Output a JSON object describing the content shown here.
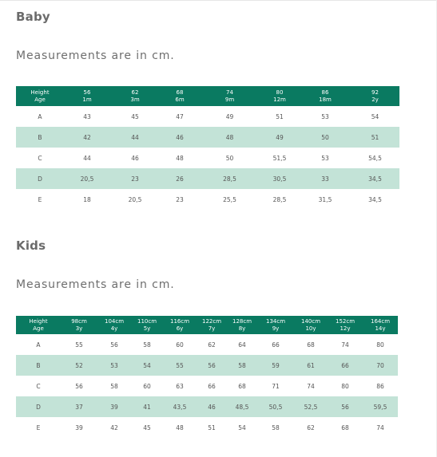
{
  "baby": {
    "title": "Baby",
    "note": "Measurements are in cm.",
    "header": [
      [
        "Height",
        "Age"
      ],
      [
        "56",
        "1m"
      ],
      [
        "62",
        "3m"
      ],
      [
        "68",
        "6m"
      ],
      [
        "74",
        "9m"
      ],
      [
        "80",
        "12m"
      ],
      [
        "86",
        "18m"
      ],
      [
        "92",
        "2y"
      ]
    ],
    "rows": [
      [
        "A",
        "43",
        "45",
        "47",
        "49",
        "51",
        "53",
        "54"
      ],
      [
        "B",
        "42",
        "44",
        "46",
        "48",
        "49",
        "50",
        "51"
      ],
      [
        "C",
        "44",
        "46",
        "48",
        "50",
        "51,5",
        "53",
        "54,5"
      ],
      [
        "D",
        "20,5",
        "23",
        "26",
        "28,5",
        "30,5",
        "33",
        "34,5"
      ],
      [
        "E",
        "18",
        "20,5",
        "23",
        "25,5",
        "28,5",
        "31,5",
        "34,5"
      ]
    ]
  },
  "kids": {
    "title": "Kids",
    "note": "Measurements are in cm.",
    "header": [
      [
        "Height",
        "Age"
      ],
      [
        "98cm",
        "3y"
      ],
      [
        "104cm",
        "4y"
      ],
      [
        "110cm",
        "5y"
      ],
      [
        "116cm",
        "6y"
      ],
      [
        "122cm",
        "7y"
      ],
      [
        "128cm",
        "8y"
      ],
      [
        "134cm",
        "9y"
      ],
      [
        "140cm",
        "10y"
      ],
      [
        "152cm",
        "12y"
      ],
      [
        "164cm",
        "14y"
      ]
    ],
    "rows": [
      [
        "A",
        "55",
        "56",
        "58",
        "60",
        "62",
        "64",
        "66",
        "68",
        "74",
        "80"
      ],
      [
        "B",
        "52",
        "53",
        "54",
        "55",
        "56",
        "58",
        "59",
        "61",
        "66",
        "70"
      ],
      [
        "C",
        "56",
        "58",
        "60",
        "63",
        "66",
        "68",
        "71",
        "74",
        "80",
        "86"
      ],
      [
        "D",
        "37",
        "39",
        "41",
        "43,5",
        "46",
        "48,5",
        "50,5",
        "52,5",
        "56",
        "59,5"
      ],
      [
        "E",
        "39",
        "42",
        "45",
        "48",
        "51",
        "54",
        "58",
        "62",
        "68",
        "74"
      ]
    ]
  },
  "colors": {
    "header_bg": "#0a7a61",
    "stripe_bg": "#c3e3d7",
    "heading_text": "#6b6b6b"
  }
}
